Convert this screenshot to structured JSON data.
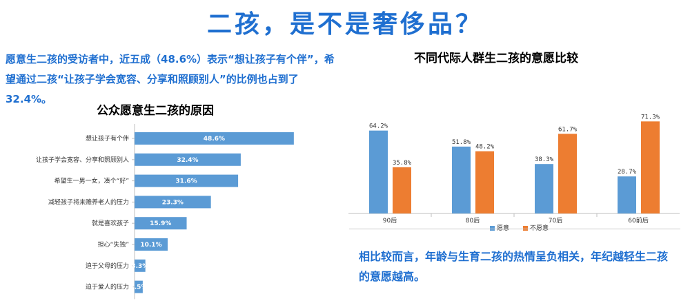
{
  "page": {
    "title": "二孩，是不是奢侈品？",
    "intro": "愿意生二孩的受访者中，近五成（48.6%）表示“想让孩子有个伴”，希望通过二孩“让孩子学会宽容、分享和照顾别人”的比例也占到了32.4%。",
    "conclusion": "相比较而言，年龄与生育二孩的热情呈负相关，年纪越轻生二孩的意愿越高。"
  },
  "colors": {
    "blue": "#5b9bd5",
    "orange": "#ed7d31",
    "accent": "#1f6fd0"
  },
  "chart_data": [
    {
      "type": "bar",
      "orientation": "horizontal",
      "title": "公众愿意生二孩的原因",
      "categories": [
        "想让孩子有个伴",
        "让孩子学会宽容、分享和照顾别人",
        "希望生一男一女，凑个“好”",
        "减轻孩子将来赡养老人的压力",
        "就是喜欢孩子",
        "担心“失独”",
        "迫于父母的压力",
        "迫于爱人的压力"
      ],
      "values": [
        48.6,
        32.4,
        31.6,
        23.3,
        15.9,
        10.1,
        3.3,
        2.5
      ],
      "labels": [
        "48.6%",
        "32.4%",
        "31.6%",
        "23.3%",
        "15.9%",
        "10.1%",
        "3.3%",
        "2.5%"
      ],
      "xlim": [
        0,
        100
      ]
    },
    {
      "type": "bar",
      "title": "不同代际人群生二孩的意愿比较",
      "categories": [
        "90后",
        "80后",
        "70后",
        "60前后"
      ],
      "series": [
        {
          "name": "愿意",
          "values": [
            64.2,
            51.8,
            38.3,
            28.7
          ],
          "labels": [
            "64.2%",
            "51.8%",
            "38.3%",
            "28.7%"
          ]
        },
        {
          "name": "不愿意",
          "values": [
            35.8,
            48.2,
            61.7,
            71.3
          ],
          "labels": [
            "35.8%",
            "48.2%",
            "61.7%",
            "71.3%"
          ]
        }
      ],
      "ylim": [
        0,
        80
      ],
      "legend": "bottom"
    }
  ]
}
